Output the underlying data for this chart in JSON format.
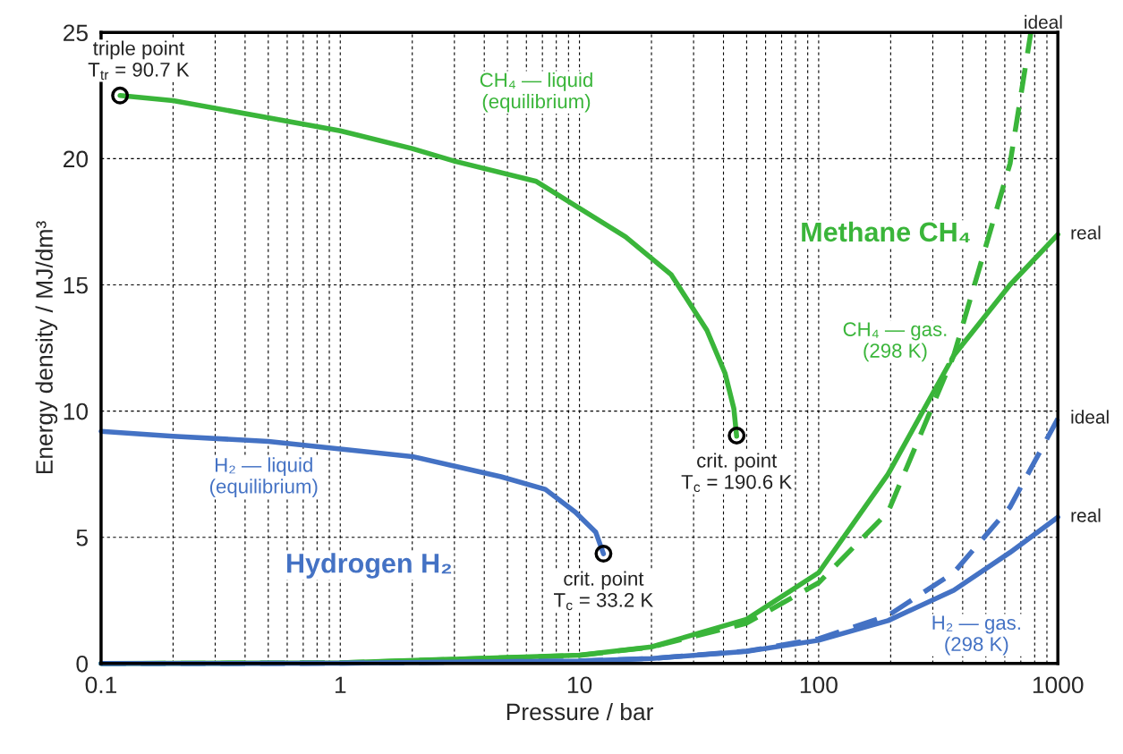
{
  "chart_data": {
    "type": "line",
    "xlabel": "Pressure / bar",
    "ylabel": "Energy density / MJ/dm³",
    "log": "x",
    "xlim": [
      0.1,
      1000
    ],
    "xticks": [
      0.1,
      1,
      10,
      100,
      1000
    ],
    "ylim": [
      0,
      25
    ],
    "yticks": [
      0,
      5,
      10,
      15,
      20,
      25
    ],
    "grid": true,
    "legend": false,
    "series": [
      {
        "color": "#3ab53a",
        "line_style": "solid",
        "x": [
          0.12,
          0.2,
          1,
          2,
          3,
          6.6,
          15.6,
          24.2,
          34.1,
          40.6,
          44.2,
          45.4
        ],
        "values": [
          22.5,
          22.3,
          21.1,
          20.4,
          19.9,
          19.1,
          16.9,
          15.4,
          13.2,
          11.5,
          10.1,
          9.0
        ]
      },
      {
        "color": "#4472c4",
        "line_style": "solid",
        "x": [
          0.1,
          0.2,
          0.5,
          1,
          2,
          4.7,
          7.2,
          9.6,
          11.7,
          12.6
        ],
        "values": [
          9.2,
          9.0,
          8.8,
          8.5,
          8.2,
          7.4,
          6.9,
          6.0,
          5.2,
          4.35
        ]
      },
      {
        "name": "real",
        "color": "#3ab53a",
        "line_style": "solid",
        "x": [
          0.1,
          1,
          10,
          20,
          50,
          100,
          195,
          367,
          631,
          1000
        ],
        "values": [
          0,
          0.03,
          0.33,
          0.66,
          1.75,
          3.6,
          7.5,
          12.2,
          15.0,
          17.0
        ]
      },
      {
        "name": "ideal",
        "color": "#3ab53a",
        "line_style": "dashed",
        "x": [
          0.1,
          1,
          10,
          20,
          50,
          100,
          195,
          367,
          631,
          771
        ],
        "values": [
          0,
          0.03,
          0.32,
          0.65,
          1.6,
          3.2,
          6.0,
          12.2,
          19.8,
          25
        ]
      },
      {
        "name": "ideal",
        "color": "#4472c4",
        "line_style": "dashed",
        "x": [
          0.1,
          1,
          10,
          20,
          50,
          100,
          195,
          367,
          631,
          1000
        ],
        "values": [
          0,
          0.01,
          0.1,
          0.2,
          0.49,
          0.98,
          1.9,
          3.6,
          6.2,
          9.7
        ]
      },
      {
        "name": "real",
        "color": "#4472c4",
        "line_style": "solid",
        "x": [
          0.1,
          1,
          10,
          20,
          50,
          100,
          195,
          367,
          631,
          1000
        ],
        "values": [
          0,
          0.01,
          0.1,
          0.2,
          0.48,
          0.92,
          1.7,
          2.9,
          4.4,
          5.8
        ]
      },
      {
        "type": "scatter",
        "marker": "circle",
        "color": "#000000",
        "x": [
          0.12,
          12.6,
          45.4
        ],
        "values": [
          22.5,
          4.35,
          9.03
        ]
      }
    ],
    "annotations": [
      {
        "text": "triple point\nT$_{tr}$ = 90.7 K",
        "x": 0.12,
        "y": 22.5
      },
      {
        "text": "crit. point\nT$_{c}$ = 33.2 K",
        "x": 12.6,
        "y": 4.35
      },
      {
        "text": "crit. point\nT$_{c}$ = 190.6 K",
        "x": 45.4,
        "y": 9.03
      },
      "CH₄ — liquid\n(equilibrium)",
      "H₂ — liquid\n(equilibrium)",
      "Methane CH₄",
      "Hydrogen H₂",
      "CH₄ — gas.\n(298 K)",
      "H₂ — gas.\n(298 K)"
    ]
  }
}
